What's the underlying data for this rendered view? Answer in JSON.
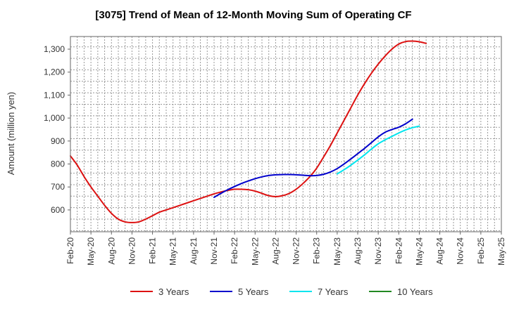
{
  "chart_data": {
    "type": "line",
    "title": "[3075]  Trend of Mean of 12-Month Moving Sum of Operating CF",
    "xlabel": "",
    "ylabel": "Amount (million yen)",
    "ylim": [
      505,
      1355
    ],
    "yticks": [
      600,
      700,
      800,
      900,
      1000,
      1100,
      1200,
      1300
    ],
    "ytick_labels": [
      "600",
      "700",
      "800",
      "900",
      "1,000",
      "1,100",
      "1,200",
      "1,300"
    ],
    "x_tick_labels": [
      "Feb-20",
      "May-20",
      "Aug-20",
      "Nov-20",
      "Feb-21",
      "May-21",
      "Aug-21",
      "Nov-21",
      "Feb-22",
      "May-22",
      "Aug-22",
      "Nov-22",
      "Feb-23",
      "May-23",
      "Aug-23",
      "Nov-23",
      "Feb-24",
      "May-24",
      "Aug-24",
      "Nov-24",
      "Feb-25",
      "May-25"
    ],
    "grid": true,
    "legend_position": "bottom",
    "series": [
      {
        "name": "3 Years",
        "color": "#dd1111",
        "points": [
          [
            0,
            835
          ],
          [
            1,
            795
          ],
          [
            2,
            745
          ],
          [
            3,
            700
          ],
          [
            4,
            660
          ],
          [
            5,
            620
          ],
          [
            6,
            585
          ],
          [
            7,
            560
          ],
          [
            8,
            548
          ],
          [
            9,
            545
          ],
          [
            10,
            548
          ],
          [
            11,
            560
          ],
          [
            12,
            575
          ],
          [
            13,
            590
          ],
          [
            14,
            600
          ],
          [
            15,
            610
          ],
          [
            16,
            620
          ],
          [
            17,
            630
          ],
          [
            18,
            640
          ],
          [
            19,
            650
          ],
          [
            20,
            660
          ],
          [
            21,
            670
          ],
          [
            22,
            678
          ],
          [
            23,
            685
          ],
          [
            24,
            690
          ],
          [
            25,
            690
          ],
          [
            26,
            688
          ],
          [
            27,
            682
          ],
          [
            28,
            672
          ],
          [
            29,
            662
          ],
          [
            30,
            658
          ],
          [
            31,
            662
          ],
          [
            32,
            672
          ],
          [
            33,
            690
          ],
          [
            34,
            715
          ],
          [
            35,
            745
          ],
          [
            36,
            782
          ],
          [
            37,
            830
          ],
          [
            38,
            880
          ],
          [
            39,
            935
          ],
          [
            40,
            990
          ],
          [
            41,
            1045
          ],
          [
            42,
            1100
          ],
          [
            43,
            1150
          ],
          [
            44,
            1195
          ],
          [
            45,
            1235
          ],
          [
            46,
            1270
          ],
          [
            47,
            1300
          ],
          [
            48,
            1322
          ],
          [
            49,
            1333
          ],
          [
            50,
            1335
          ],
          [
            51,
            1332
          ],
          [
            52,
            1325
          ]
        ]
      },
      {
        "name": "5 Years",
        "color": "#0000cc",
        "points": [
          [
            21,
            655
          ],
          [
            22,
            672
          ],
          [
            23,
            688
          ],
          [
            24,
            702
          ],
          [
            25,
            715
          ],
          [
            26,
            726
          ],
          [
            27,
            736
          ],
          [
            28,
            744
          ],
          [
            29,
            750
          ],
          [
            30,
            753
          ],
          [
            31,
            754
          ],
          [
            32,
            754
          ],
          [
            33,
            753
          ],
          [
            34,
            751
          ],
          [
            35,
            749
          ],
          [
            36,
            750
          ],
          [
            37,
            755
          ],
          [
            38,
            765
          ],
          [
            39,
            780
          ],
          [
            40,
            800
          ],
          [
            41,
            822
          ],
          [
            42,
            845
          ],
          [
            43,
            868
          ],
          [
            44,
            893
          ],
          [
            45,
            918
          ],
          [
            46,
            938
          ],
          [
            47,
            950
          ],
          [
            48,
            960
          ],
          [
            49,
            975
          ],
          [
            50,
            995
          ]
        ]
      },
      {
        "name": "7 Years",
        "color": "#00e5ee",
        "points": [
          [
            39,
            757
          ],
          [
            40,
            775
          ],
          [
            41,
            795
          ],
          [
            42,
            817
          ],
          [
            43,
            840
          ],
          [
            44,
            865
          ],
          [
            45,
            888
          ],
          [
            46,
            905
          ],
          [
            47,
            920
          ],
          [
            48,
            935
          ],
          [
            49,
            948
          ],
          [
            50,
            958
          ],
          [
            51,
            965
          ]
        ]
      },
      {
        "name": "10 Years",
        "color": "#228822",
        "points": []
      }
    ]
  }
}
